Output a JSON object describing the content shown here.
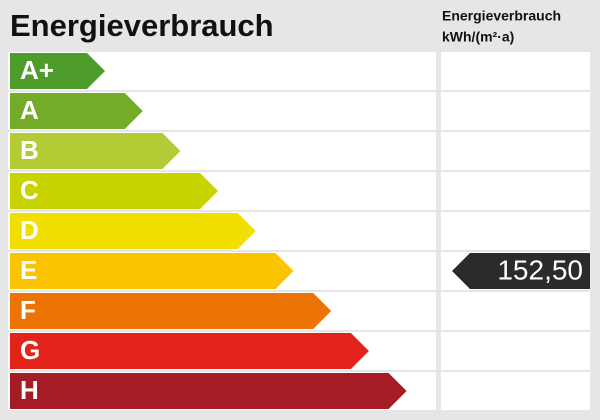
{
  "header": {
    "title": "Energieverbrauch",
    "column_title": "Energieverbrauch",
    "column_unit": "kWh/(m²·a)"
  },
  "classes": [
    {
      "label": "A+",
      "color": "#4e9c2b"
    },
    {
      "label": "A",
      "color": "#74ab29"
    },
    {
      "label": "B",
      "color": "#b5cb36"
    },
    {
      "label": "C",
      "color": "#c9d300"
    },
    {
      "label": "D",
      "color": "#f1df00"
    },
    {
      "label": "E",
      "color": "#fbc400",
      "value": "152,50"
    },
    {
      "label": "F",
      "color": "#ec7404"
    },
    {
      "label": "G",
      "color": "#e2231a"
    },
    {
      "label": "H",
      "color": "#a41c24"
    }
  ]
}
